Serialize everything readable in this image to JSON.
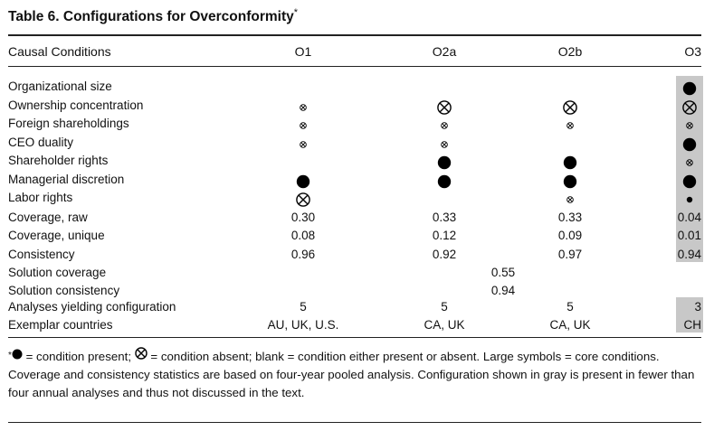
{
  "title": "Table 6.  Configurations for Overconformity",
  "title_mark": "*",
  "columns": {
    "condition": "Causal Conditions",
    "o1": "O1",
    "o2a": "O2a",
    "o2b": "O2b",
    "o3": "O3"
  },
  "conditions": [
    {
      "label": "Organizational size",
      "o1": "",
      "o2a": "",
      "o2b": "",
      "o3": "present-core"
    },
    {
      "label": "Ownership concentration",
      "o1": "absent-peripheral",
      "o2a": "absent-core",
      "o2b": "absent-core",
      "o3": "absent-core"
    },
    {
      "label": "Foreign shareholdings",
      "o1": "absent-peripheral",
      "o2a": "absent-peripheral",
      "o2b": "absent-peripheral",
      "o3": "absent-peripheral"
    },
    {
      "label": "CEO duality",
      "o1": "absent-peripheral",
      "o2a": "absent-peripheral",
      "o2b": "",
      "o3": "present-core"
    },
    {
      "label": "Shareholder rights",
      "o1": "",
      "o2a": "present-core",
      "o2b": "present-core",
      "o3": "absent-peripheral"
    },
    {
      "label": "Managerial discretion",
      "o1": "present-core",
      "o2a": "present-core",
      "o2b": "present-core",
      "o3": "present-core"
    },
    {
      "label": "Labor rights",
      "o1": "absent-core",
      "o2a": "",
      "o2b": "absent-peripheral",
      "o3": "present-peripheral"
    }
  ],
  "stats": [
    {
      "label": "Coverage, raw",
      "o1": "0.30",
      "o2a": "0.33",
      "o2b": "0.33",
      "o3": "0.04"
    },
    {
      "label": "Coverage, unique",
      "o1": "0.08",
      "o2a": "0.12",
      "o2b": "0.09",
      "o3": "0.01"
    },
    {
      "label": "Consistency",
      "o1": "0.96",
      "o2a": "0.92",
      "o2b": "0.97",
      "o3": "0.94"
    }
  ],
  "solution": [
    {
      "label": "Solution coverage",
      "value": "0.55"
    },
    {
      "label": "Solution consistency",
      "value": "0.94"
    }
  ],
  "analyses": {
    "label": "Analyses yielding configuration",
    "o1": "5",
    "o2a": "5",
    "o2b": "5",
    "o3": "3"
  },
  "exemplars": {
    "label": "Exemplar countries",
    "o1": "AU, UK, U.S.",
    "o2a": "CA, UK",
    "o2b": "CA, UK",
    "o3": "CH"
  },
  "footnote": {
    "mark": "*",
    "part1": " = condition present; ",
    "part2": " = condition absent; blank = condition either present or absent. Large symbols = core conditions. Coverage and consistency statistics are based on four-year pooled analysis. Configuration shown in gray is present in fewer than four annual analyses and thus not discussed in the text."
  }
}
